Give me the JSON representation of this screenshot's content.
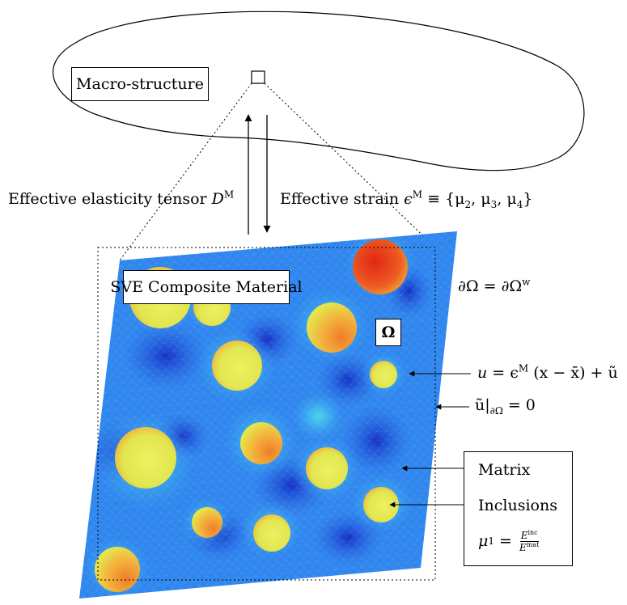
{
  "macro": {
    "label": "Macro-structure"
  },
  "arrows": {
    "up_label_text": "Effective elasticity tensor ",
    "up_label_symbol": "D",
    "up_label_sup": "M",
    "down_label_text": "Effective strain ",
    "down_label_math": "ϵ",
    "down_label_sup": "M",
    "down_label_rest": " ≡ {μ",
    "mu2": "2",
    "mu3": "3",
    "mu4": "4",
    "sep": ", μ",
    "close": "}"
  },
  "sve": {
    "title": "SVE Composite Material",
    "domain_symbol": "Ω",
    "boundary_eq": "∂Ω = ∂Ω",
    "boundary_sup": "w",
    "displacement_lhs": "u",
    "displacement_eq": " = ϵ",
    "displacement_sup": "M",
    "displacement_rest": " (x − x̄) + ũ",
    "bc_lhs": "ũ|",
    "bc_sub": "∂Ω",
    "bc_rest": " = 0"
  },
  "legend": {
    "matrix": "Matrix",
    "inclusions": "Inclusions",
    "mu1": "μ",
    "mu1_sub": "1",
    "mu1_eq": " = ",
    "frac_num": "E",
    "frac_num_sup": "inc",
    "frac_den": "E",
    "frac_den_sup": "mat"
  },
  "colors": {
    "matrix_dark": "#1f3fd0",
    "matrix_mid": "#2f86ee",
    "matrix_light": "#3cc6f2",
    "inclusion_yellow": "#e3ec50",
    "inclusion_orange": "#f5a23a",
    "inclusion_red": "#e8311d"
  }
}
